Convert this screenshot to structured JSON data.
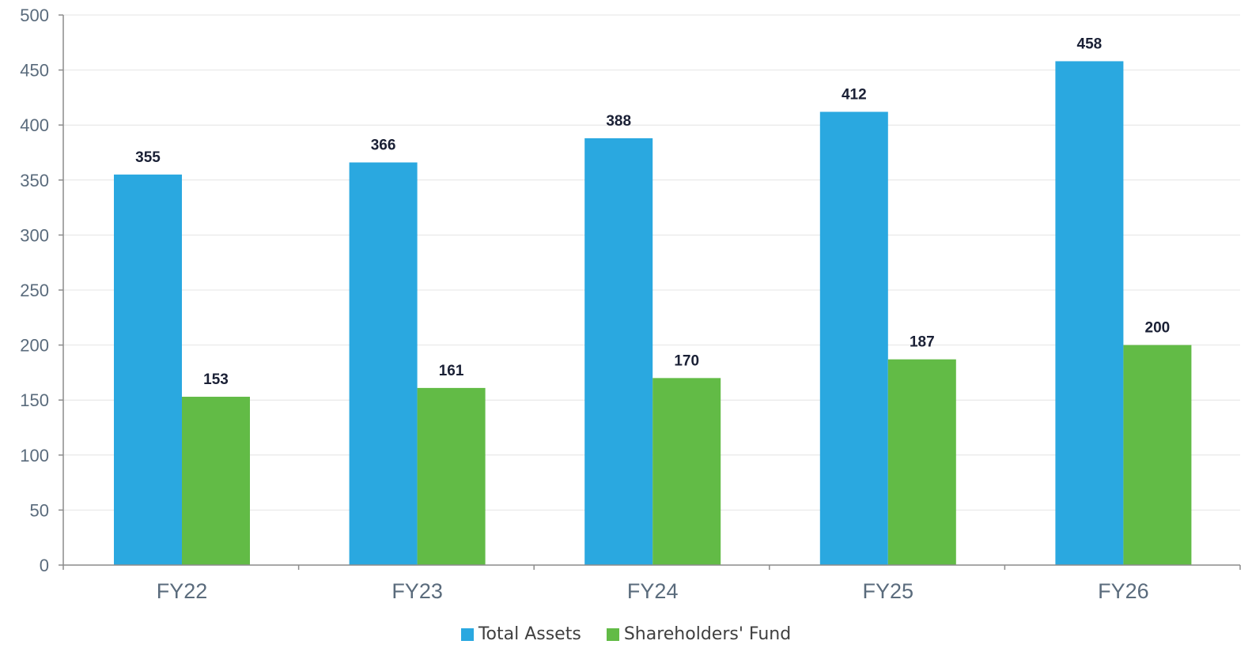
{
  "chart_data": {
    "type": "bar",
    "categories": [
      "FY22",
      "FY23",
      "FY24",
      "FY25",
      "FY26"
    ],
    "series": [
      {
        "name": "Total Assets",
        "values": [
          355,
          366,
          388,
          412,
          458
        ],
        "color": "#2aa8e0"
      },
      {
        "name": "Shareholders' Fund",
        "values": [
          153,
          161,
          170,
          187,
          200
        ],
        "color": "#62bb46"
      }
    ],
    "yticks": [
      0,
      50,
      100,
      150,
      200,
      250,
      300,
      350,
      400,
      450,
      500
    ],
    "ylim": [
      0,
      500
    ],
    "grid": true,
    "legend_position": "bottom",
    "title": "",
    "xlabel": "",
    "ylabel": ""
  },
  "legend": {
    "items": [
      {
        "label": "Total Assets",
        "color": "#2aa8e0"
      },
      {
        "label": "Shareholders' Fund",
        "color": "#62bb46"
      }
    ]
  },
  "colors": {
    "axis_text": "#5a6b7c",
    "data_label": "#1a2035",
    "axis_line": "#8c8c8c",
    "grid": "#e4e4e4"
  }
}
